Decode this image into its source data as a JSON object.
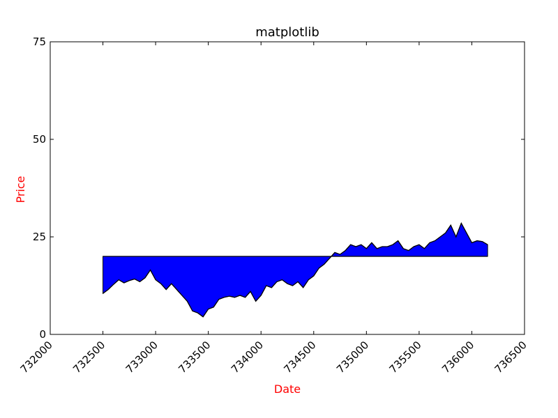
{
  "chart_data": {
    "type": "area",
    "title": "matplotlib",
    "xlabel": "Date",
    "ylabel": "Price",
    "label_color": "#ff0000",
    "fill_color": "#0000ff",
    "line_color": "#000000",
    "baseline": 20,
    "xlim": [
      732000,
      736500
    ],
    "ylim": [
      0,
      75
    ],
    "xticks": [
      732000,
      732500,
      733000,
      733500,
      734000,
      734500,
      735000,
      735500,
      736000,
      736500
    ],
    "yticks": [
      0,
      25,
      50,
      75
    ],
    "grid": false,
    "x": [
      732500,
      732550,
      732600,
      732650,
      732700,
      732750,
      732800,
      732850,
      732900,
      732950,
      733000,
      733050,
      733100,
      733150,
      733200,
      733250,
      733300,
      733350,
      733400,
      733450,
      733500,
      733550,
      733600,
      733650,
      733700,
      733750,
      733800,
      733850,
      733900,
      733950,
      734000,
      734050,
      734100,
      734150,
      734200,
      734250,
      734300,
      734350,
      734400,
      734450,
      734500,
      734550,
      734600,
      734650,
      734700,
      734750,
      734800,
      734850,
      734900,
      734950,
      735000,
      735050,
      735100,
      735150,
      735200,
      735250,
      735300,
      735350,
      735400,
      735450,
      735500,
      735550,
      735600,
      735650,
      735700,
      735750,
      735800,
      735850,
      735900,
      735950,
      736000,
      736050,
      736100,
      736150
    ],
    "y": [
      10.5,
      11.5,
      12.8,
      14.0,
      13.2,
      13.8,
      14.2,
      13.5,
      14.5,
      16.5,
      14.0,
      13.0,
      11.5,
      13.0,
      11.5,
      10.0,
      8.5,
      6.0,
      5.5,
      4.5,
      6.5,
      7.0,
      9.0,
      9.5,
      9.8,
      9.5,
      10.0,
      9.5,
      11.0,
      8.5,
      10.0,
      12.5,
      12.0,
      13.5,
      14.0,
      13.0,
      12.5,
      13.5,
      12.0,
      14.0,
      15.0,
      17.0,
      18.0,
      19.5,
      21.0,
      20.5,
      21.5,
      23.0,
      22.5,
      23.0,
      22.0,
      23.5,
      22.0,
      22.5,
      22.5,
      23.0,
      24.0,
      22.0,
      21.5,
      22.5,
      23.0,
      22.0,
      23.5,
      24.0,
      25.0,
      26.0,
      28.0,
      25.0,
      28.5,
      26.0,
      23.5,
      24.0,
      23.8,
      23.0
    ]
  }
}
